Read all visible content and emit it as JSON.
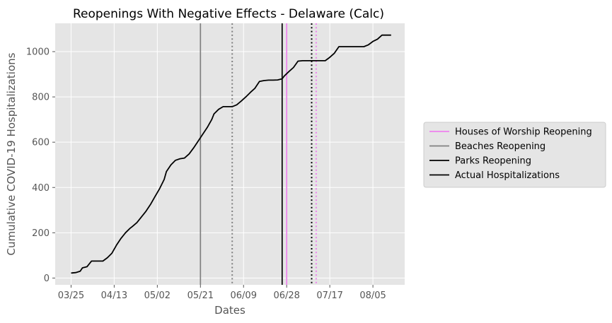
{
  "chart_data": {
    "type": "line",
    "title": "Reopenings With Negative Effects - Delaware (Calc)",
    "xlabel": "Dates",
    "ylabel": "Cumulative COVID-19 Hospitalizations",
    "x_ticks": [
      "03/25",
      "04/13",
      "05/02",
      "05/21",
      "06/09",
      "06/28",
      "07/17",
      "08/05"
    ],
    "y_ticks": [
      0,
      200,
      400,
      600,
      800,
      1000
    ],
    "ylim": [
      -30,
      1125
    ],
    "xlim_dates": [
      "2020-03-18",
      "2020-08-19"
    ],
    "grid": true,
    "background": "#e5e5e5",
    "legend_position": "right, outside plot",
    "legend": [
      {
        "label": "Houses of Worship Reopening",
        "color": "#ee82ee"
      },
      {
        "label": "Beaches Reopening",
        "color": "#808080"
      },
      {
        "label": "Parks Reopening",
        "color": "#000000"
      },
      {
        "label": "Actual Hospitalizations",
        "color": "#000000"
      }
    ],
    "vertical_lines": [
      {
        "date": "2020-05-21",
        "color": "#808080",
        "style": "solid",
        "series": "Beaches Reopening"
      },
      {
        "date": "2020-06-04",
        "color": "#808080",
        "style": "dotted",
        "series": "Beaches Reopening"
      },
      {
        "date": "2020-06-26",
        "color": "#000000",
        "style": "solid",
        "series": "Parks Reopening"
      },
      {
        "date": "2020-06-28",
        "color": "#ee82ee",
        "style": "solid",
        "series": "Houses of Worship Reopening"
      },
      {
        "date": "2020-07-09",
        "color": "#000000",
        "style": "dotted",
        "series": "Parks Reopening"
      },
      {
        "date": "2020-07-11",
        "color": "#ee82ee",
        "style": "dotted",
        "series": "Houses of Worship Reopening"
      }
    ],
    "series": [
      {
        "name": "Actual Hospitalizations",
        "color": "#000000",
        "points": [
          [
            "2020-03-25",
            22
          ],
          [
            "2020-03-27",
            24
          ],
          [
            "2020-03-29",
            30
          ],
          [
            "2020-03-30",
            45
          ],
          [
            "2020-04-01",
            50
          ],
          [
            "2020-04-03",
            75
          ],
          [
            "2020-04-05",
            75
          ],
          [
            "2020-04-08",
            75
          ],
          [
            "2020-04-10",
            90
          ],
          [
            "2020-04-12",
            110
          ],
          [
            "2020-04-14",
            145
          ],
          [
            "2020-04-16",
            175
          ],
          [
            "2020-04-18",
            200
          ],
          [
            "2020-04-20",
            220
          ],
          [
            "2020-04-21",
            228
          ],
          [
            "2020-04-23",
            245
          ],
          [
            "2020-04-25",
            270
          ],
          [
            "2020-04-27",
            295
          ],
          [
            "2020-04-29",
            325
          ],
          [
            "2020-05-01",
            360
          ],
          [
            "2020-05-03",
            395
          ],
          [
            "2020-05-05",
            435
          ],
          [
            "2020-05-06",
            470
          ],
          [
            "2020-05-08",
            500
          ],
          [
            "2020-05-10",
            520
          ],
          [
            "2020-05-12",
            527
          ],
          [
            "2020-05-14",
            530
          ],
          [
            "2020-05-16",
            548
          ],
          [
            "2020-05-18",
            575
          ],
          [
            "2020-05-20",
            605
          ],
          [
            "2020-05-22",
            635
          ],
          [
            "2020-05-24",
            665
          ],
          [
            "2020-05-26",
            700
          ],
          [
            "2020-05-27",
            725
          ],
          [
            "2020-05-29",
            745
          ],
          [
            "2020-05-31",
            757
          ],
          [
            "2020-06-02",
            757
          ],
          [
            "2020-06-04",
            757
          ],
          [
            "2020-06-06",
            765
          ],
          [
            "2020-06-08",
            782
          ],
          [
            "2020-06-10",
            800
          ],
          [
            "2020-06-12",
            820
          ],
          [
            "2020-06-14",
            838
          ],
          [
            "2020-06-16",
            868
          ],
          [
            "2020-06-18",
            872
          ],
          [
            "2020-06-20",
            874
          ],
          [
            "2020-06-22",
            874
          ],
          [
            "2020-06-24",
            875
          ],
          [
            "2020-06-26",
            880
          ],
          [
            "2020-06-27",
            893
          ],
          [
            "2020-06-29",
            912
          ],
          [
            "2020-07-01",
            930
          ],
          [
            "2020-07-03",
            958
          ],
          [
            "2020-07-05",
            960
          ],
          [
            "2020-07-10",
            960
          ],
          [
            "2020-07-15",
            960
          ],
          [
            "2020-07-17",
            975
          ],
          [
            "2020-07-19",
            993
          ],
          [
            "2020-07-21",
            1022
          ],
          [
            "2020-07-25",
            1022
          ],
          [
            "2020-08-01",
            1022
          ],
          [
            "2020-08-03",
            1030
          ],
          [
            "2020-08-05",
            1045
          ],
          [
            "2020-08-07",
            1055
          ],
          [
            "2020-08-09",
            1073
          ],
          [
            "2020-08-13",
            1073
          ]
        ]
      }
    ]
  }
}
